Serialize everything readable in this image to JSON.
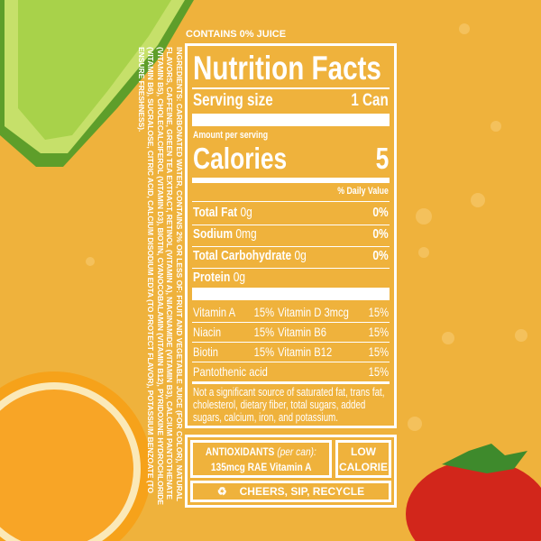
{
  "juice_note": "CONTAINS 0% JUICE",
  "ingredients": "INGREDIENTS: CARBONATED WATER, CONTAINS 2% OR LESS OF: FRUIT AND VEGETABLE JUICE (FOR COLOR), NATURAL FLAVORS, CAFFEINE, GREEN TEA EXTRACT, RETINOL (VITAMIN A), NIACINAMIDE (VITAMIN B3), CALCIUM PANTOTHENATE (VITAMIN B5), CHOLECALCIFEROL (VITAMIN D3), BIOTIN, CYANOCOBALAMIN (VITAMIN B12), PYRIDOXINE HYDROCHLORIDE (VITAMIN B6), SUCRALOSE, CITRIC ACID, CALCIUM DISODIUM EDTA (TO PROTECT FLAVOR), POTASSIUM BENZOATE (TO ENSURE FRESHNESS).",
  "facts": {
    "title": "Nutrition Facts",
    "serving_label": "Serving size",
    "serving_value": "1 Can",
    "amount_label": "Amount per serving",
    "calories_label": "Calories",
    "calories_value": "5",
    "dv_header": "% Daily Value",
    "nutrients": [
      {
        "name": "Total Fat",
        "amount": "0g",
        "dv": "0%"
      },
      {
        "name": "Sodium",
        "amount": "0mg",
        "dv": "0%"
      },
      {
        "name": "Total Carbohydrate",
        "amount": "0g",
        "dv": "0%"
      },
      {
        "name": "Protein",
        "amount": "0g",
        "dv": ""
      }
    ],
    "vitamins": [
      {
        "left": "Vitamin A",
        "left_dv": "15%",
        "right": "Vitamin D 3mcg",
        "right_dv": "15%"
      },
      {
        "left": "Niacin",
        "left_dv": "15%",
        "right": "Vitamin B6",
        "right_dv": "15%"
      },
      {
        "left": "Biotin",
        "left_dv": "15%",
        "right": "Vitamin B12",
        "right_dv": "15%"
      }
    ],
    "pantothenic": {
      "name": "Pantothenic acid",
      "dv": "15%"
    },
    "footnote": "Not a significant source of saturated fat, trans fat, cholesterol, dietary fiber, total sugars, added sugars, calcium, iron, and potassium."
  },
  "badges": {
    "antioxidants_label": "ANTIOXIDANTS",
    "antioxidants_per": "(per can):",
    "antioxidants_value": "135mcg RAE Vitamin A",
    "low": "LOW",
    "calorie": "CALORIE",
    "recycle": "CHEERS, SIP, RECYCLE"
  },
  "colors": {
    "background": "#efb23c",
    "text": "#ffffff",
    "lime": "#9ccc3c",
    "orange": "#f29a1c",
    "strawberry": "#d8281c"
  }
}
